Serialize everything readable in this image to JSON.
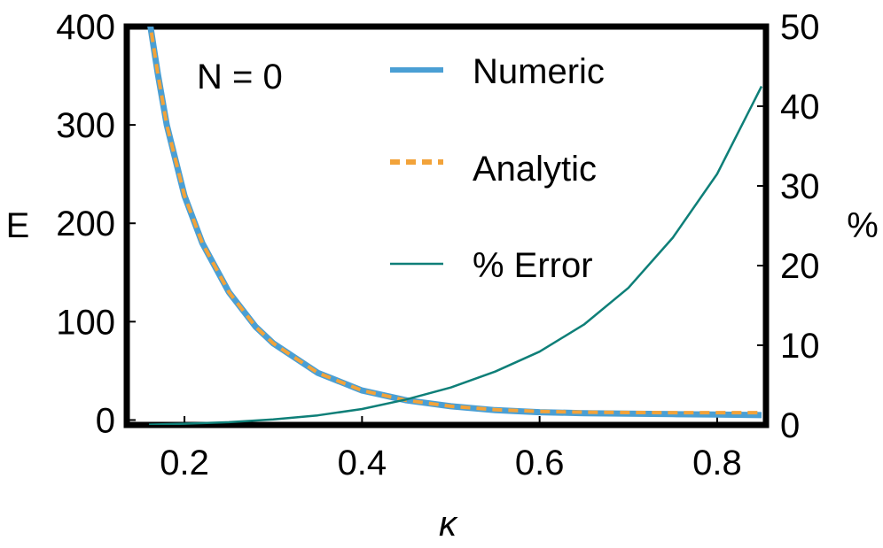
{
  "chart_data": {
    "type": "line",
    "annotation": "N = 0",
    "xlabel": "κ",
    "ylabel_left": "E",
    "ylabel_right": "%",
    "xlim": [
      0.135,
      0.855
    ],
    "ylim_left": [
      -5,
      400
    ],
    "ylim_right": [
      0,
      50
    ],
    "x_ticks": [
      0.2,
      0.4,
      0.6,
      0.8
    ],
    "x_tick_labels": [
      "0.2",
      "0.4",
      "0.6",
      "0.8"
    ],
    "y_left_ticks": [
      0,
      100,
      200,
      300,
      400
    ],
    "y_left_tick_labels": [
      "0",
      "100",
      "200",
      "300",
      "400"
    ],
    "y_right_ticks": [
      0,
      10,
      20,
      30,
      40,
      50
    ],
    "y_right_tick_labels": [
      "0",
      "10",
      "20",
      "30",
      "40",
      "50"
    ],
    "grid": false,
    "legend_position": "top-right",
    "colors": {
      "numeric": "#4a9fd4",
      "analytic": "#f2a33a",
      "error": "#0e7f78"
    },
    "series": [
      {
        "name": "Numeric",
        "axis": "left",
        "style": "solid-thick",
        "x": [
          0.16,
          0.17,
          0.18,
          0.2,
          0.22,
          0.25,
          0.28,
          0.3,
          0.35,
          0.4,
          0.45,
          0.5,
          0.55,
          0.6,
          0.65,
          0.7,
          0.75,
          0.8,
          0.85
        ],
        "y": [
          410,
          352,
          300,
          228,
          180,
          130,
          95,
          78,
          48,
          30,
          20,
          14,
          10,
          8,
          7,
          6.5,
          6,
          5.5,
          5
        ]
      },
      {
        "name": "Analytic",
        "axis": "left",
        "style": "dashed",
        "x": [
          0.16,
          0.17,
          0.18,
          0.2,
          0.22,
          0.25,
          0.28,
          0.3,
          0.35,
          0.4,
          0.45,
          0.5,
          0.55,
          0.6,
          0.65,
          0.7,
          0.75,
          0.8,
          0.85
        ],
        "y": [
          410,
          352,
          300,
          228,
          180,
          130,
          95,
          78,
          48,
          30,
          20,
          14,
          10.5,
          8.8,
          8,
          7.6,
          7.5,
          7.5,
          7.5
        ]
      },
      {
        "name": "% Error",
        "axis": "right",
        "style": "solid-thin",
        "x": [
          0.16,
          0.2,
          0.25,
          0.3,
          0.35,
          0.4,
          0.45,
          0.5,
          0.55,
          0.6,
          0.65,
          0.7,
          0.75,
          0.8,
          0.85
        ],
        "y": [
          0.05,
          0.15,
          0.35,
          0.7,
          1.2,
          2.0,
          3.2,
          4.7,
          6.7,
          9.2,
          12.6,
          17.2,
          23.5,
          31.5,
          42.5
        ]
      }
    ]
  }
}
